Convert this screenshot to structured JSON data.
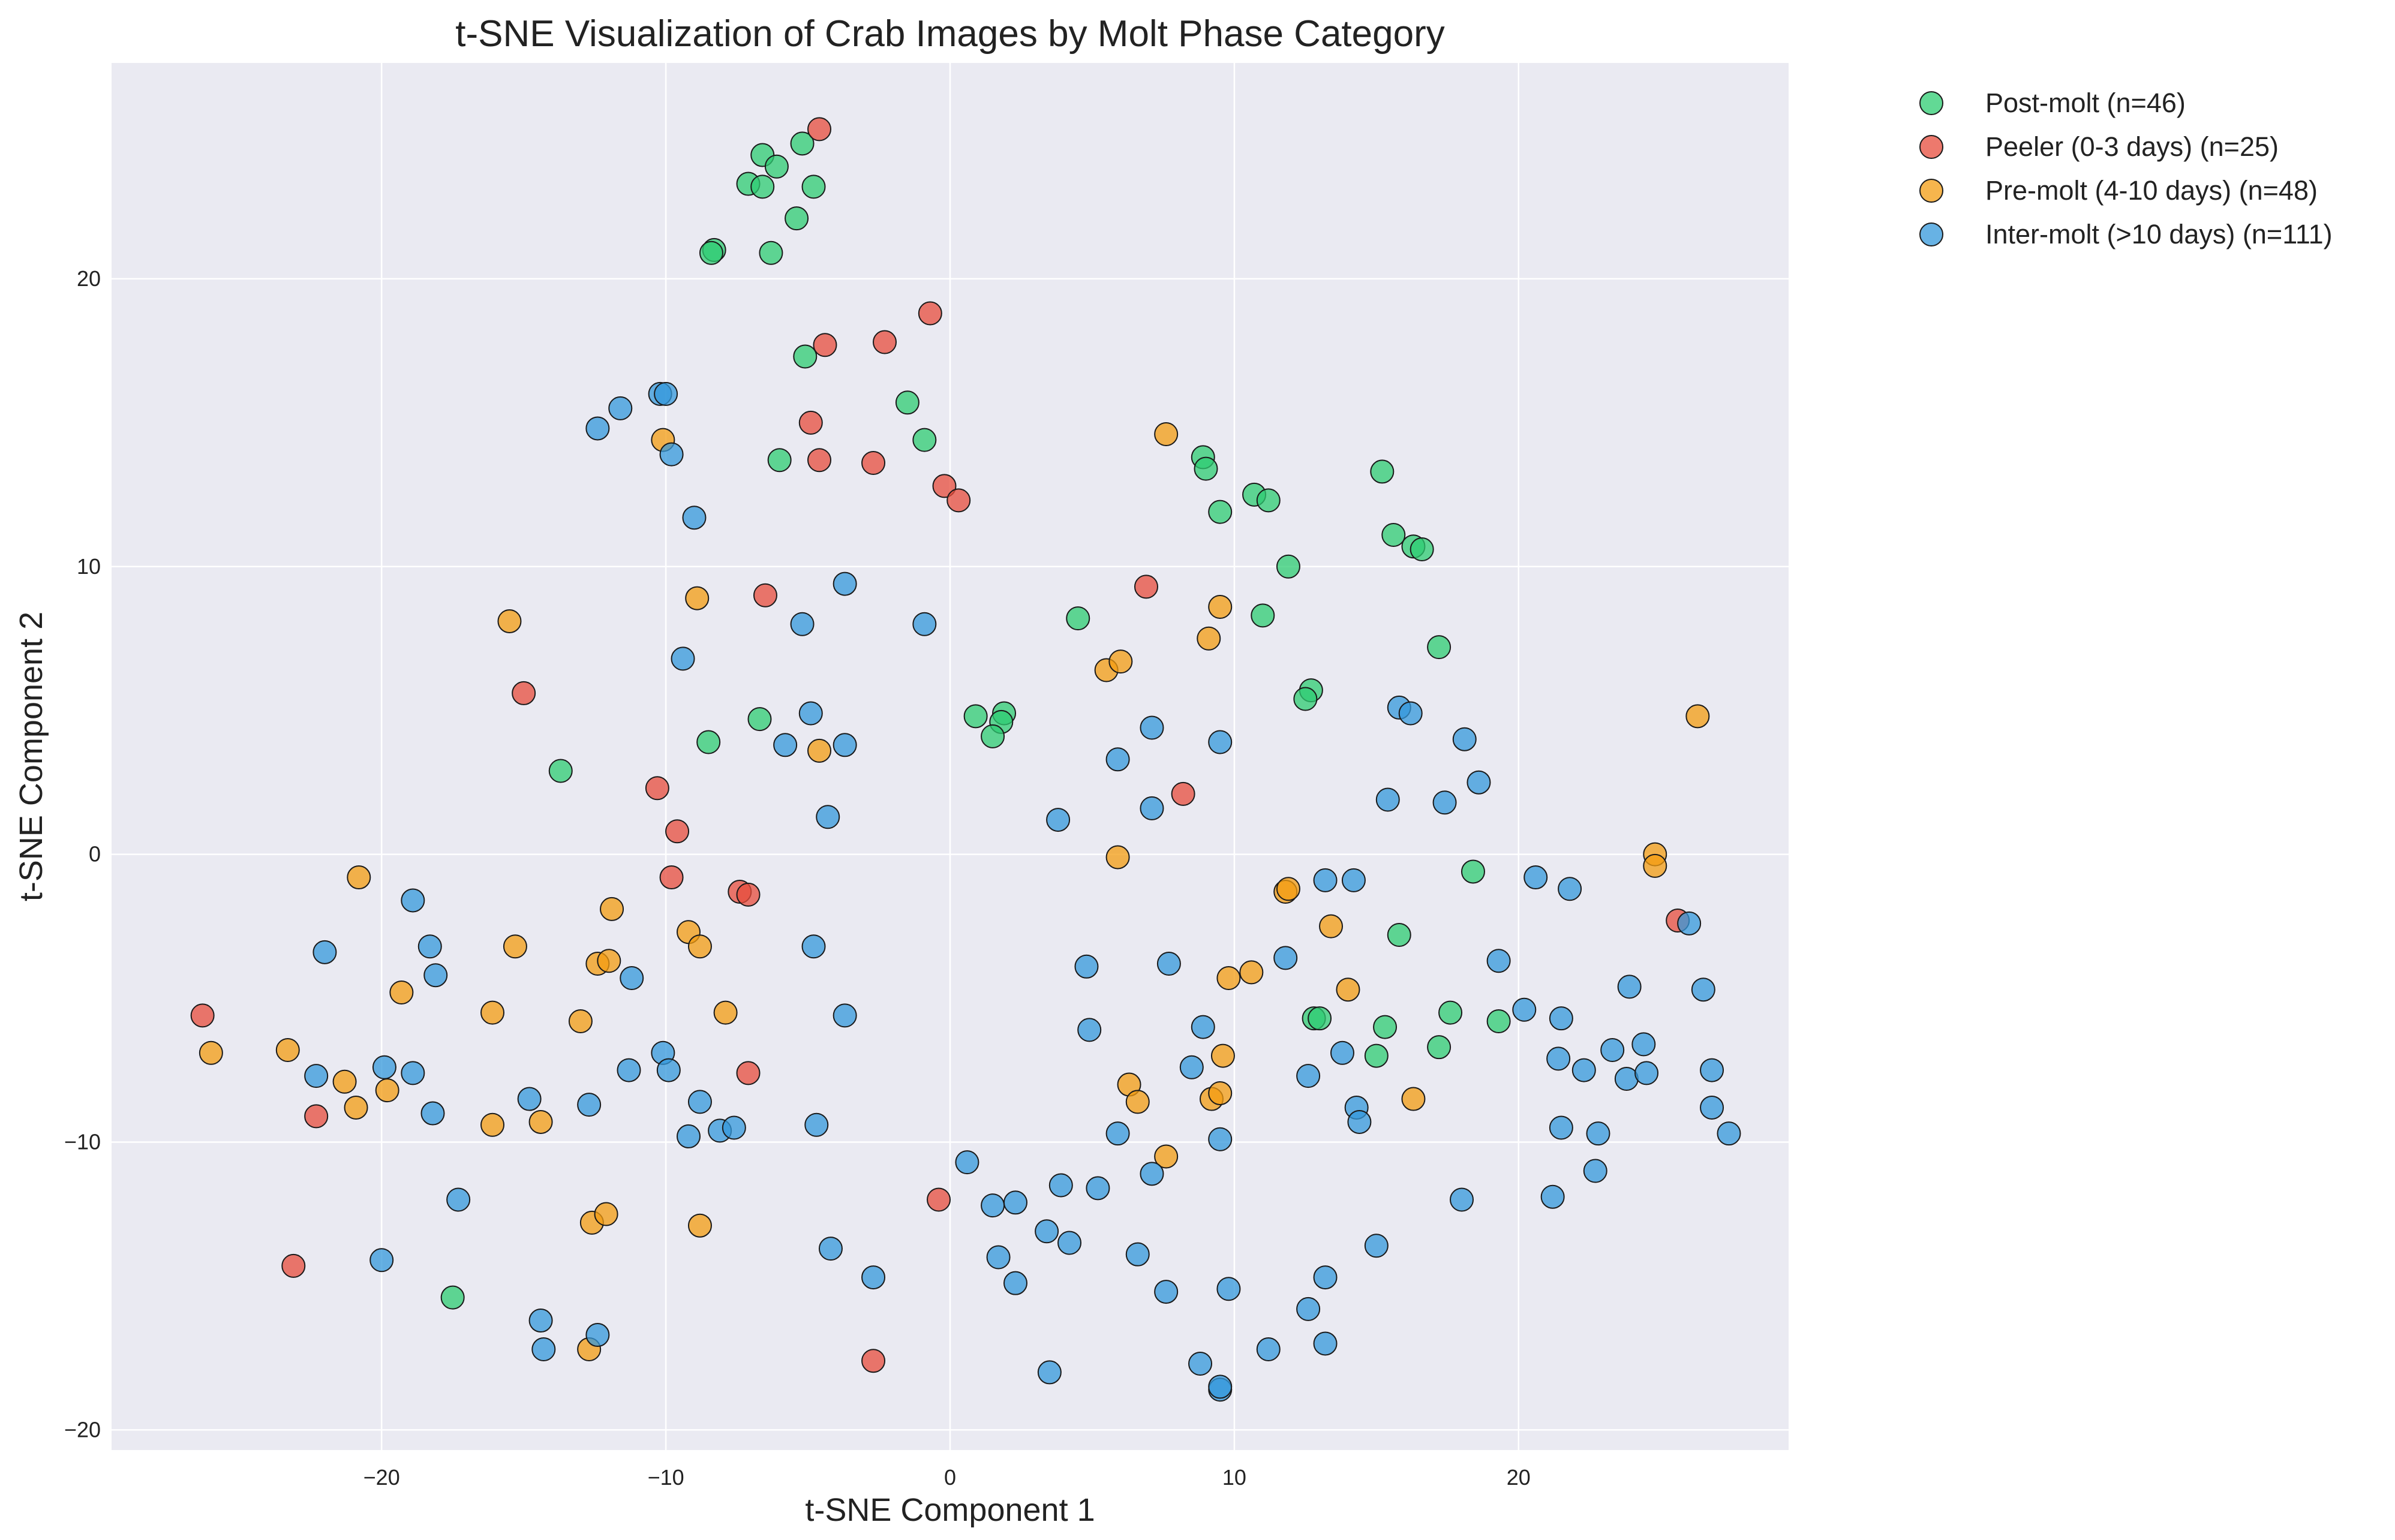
{
  "chart_data": {
    "type": "scatter",
    "title": "t-SNE Visualization of Crab Images by Molt Phase Category",
    "xlabel": "t-SNE Component 1",
    "ylabel": "t-SNE Component 2",
    "xlim": [
      -29.5,
      29.5
    ],
    "ylim": [
      -20.7,
      27.5
    ],
    "xticks": [
      -20,
      -10,
      0,
      10,
      20
    ],
    "yticks": [
      -20,
      -10,
      0,
      10,
      20
    ],
    "xtick_labels": [
      "−20",
      "−10",
      "0",
      "10",
      "20"
    ],
    "ytick_labels": [
      "−20",
      "−10",
      "0",
      "10",
      "20"
    ],
    "grid": true,
    "background": "#EAEAF2",
    "legend_position": "upper-right-outside",
    "series": [
      {
        "name": "Post-molt (n=46)",
        "color": "#2ECC71",
        "points": [
          [
            -7.1,
            23.3
          ],
          [
            -6.6,
            24.3
          ],
          [
            -6.6,
            23.2
          ],
          [
            -6.1,
            23.9
          ],
          [
            -5.2,
            24.7
          ],
          [
            -4.8,
            23.2
          ],
          [
            -5.4,
            22.1
          ],
          [
            -8.3,
            21.0
          ],
          [
            -8.4,
            20.9
          ],
          [
            -6.3,
            20.9
          ],
          [
            -5.1,
            17.3
          ],
          [
            -1.5,
            15.7
          ],
          [
            -0.9,
            14.4
          ],
          [
            -6.0,
            13.7
          ],
          [
            8.9,
            13.8
          ],
          [
            9.0,
            13.4
          ],
          [
            10.7,
            12.5
          ],
          [
            11.2,
            12.3
          ],
          [
            9.5,
            11.9
          ],
          [
            15.2,
            13.3
          ],
          [
            15.6,
            11.1
          ],
          [
            16.3,
            10.7
          ],
          [
            16.6,
            10.6
          ],
          [
            11.9,
            10.0
          ],
          [
            11.0,
            8.3
          ],
          [
            4.5,
            8.2
          ],
          [
            17.2,
            7.2
          ],
          [
            12.7,
            5.7
          ],
          [
            12.5,
            5.4
          ],
          [
            0.9,
            4.8
          ],
          [
            1.9,
            4.9
          ],
          [
            1.8,
            4.6
          ],
          [
            1.5,
            4.1
          ],
          [
            -6.7,
            4.7
          ],
          [
            -8.5,
            3.9
          ],
          [
            -13.7,
            2.9
          ],
          [
            18.4,
            -0.6
          ],
          [
            15.8,
            -2.8
          ],
          [
            12.8,
            -5.7
          ],
          [
            13.0,
            -5.7
          ],
          [
            15.3,
            -6.0
          ],
          [
            17.6,
            -5.5
          ],
          [
            19.3,
            -5.8
          ],
          [
            17.2,
            -6.7
          ],
          [
            15.0,
            -7.0
          ],
          [
            -17.5,
            -15.4
          ]
        ]
      },
      {
        "name": "Peeler (0-3 days) (n=25)",
        "color": "#E74C3C",
        "points": [
          [
            -4.6,
            25.2
          ],
          [
            -0.7,
            18.8
          ],
          [
            -2.3,
            17.8
          ],
          [
            -4.4,
            17.7
          ],
          [
            -4.9,
            15.0
          ],
          [
            -4.6,
            13.7
          ],
          [
            -2.7,
            13.6
          ],
          [
            -0.2,
            12.8
          ],
          [
            0.3,
            12.3
          ],
          [
            -6.5,
            9.0
          ],
          [
            6.9,
            9.3
          ],
          [
            -15.0,
            5.6
          ],
          [
            8.2,
            2.1
          ],
          [
            -10.3,
            2.3
          ],
          [
            -9.6,
            0.8
          ],
          [
            -9.8,
            -0.8
          ],
          [
            -7.4,
            -1.3
          ],
          [
            -7.1,
            -1.4
          ],
          [
            -26.3,
            -5.6
          ],
          [
            -7.1,
            -7.6
          ],
          [
            -22.3,
            -9.1
          ],
          [
            -23.1,
            -14.3
          ],
          [
            -0.4,
            -12.0
          ],
          [
            -2.7,
            -17.6
          ],
          [
            25.6,
            -2.3
          ]
        ]
      },
      {
        "name": "Pre-molt (4-10 days) (n=48)",
        "color": "#F39C12",
        "points": [
          [
            7.6,
            14.6
          ],
          [
            -10.1,
            14.4
          ],
          [
            -8.9,
            8.9
          ],
          [
            -15.5,
            8.1
          ],
          [
            9.5,
            8.6
          ],
          [
            9.1,
            7.5
          ],
          [
            5.5,
            6.4
          ],
          [
            6.0,
            6.7
          ],
          [
            -4.6,
            3.6
          ],
          [
            26.3,
            4.8
          ],
          [
            -20.8,
            -0.8
          ],
          [
            5.9,
            -0.1
          ],
          [
            11.8,
            -1.3
          ],
          [
            11.9,
            -1.2
          ],
          [
            13.4,
            -2.5
          ],
          [
            24.8,
            0.0
          ],
          [
            24.8,
            -0.4
          ],
          [
            -11.9,
            -1.9
          ],
          [
            -9.2,
            -2.7
          ],
          [
            -8.8,
            -3.2
          ],
          [
            -15.3,
            -3.2
          ],
          [
            -12.4,
            -3.8
          ],
          [
            -12.0,
            -3.7
          ],
          [
            9.8,
            -4.3
          ],
          [
            10.6,
            -4.1
          ],
          [
            14.0,
            -4.7
          ],
          [
            -19.3,
            -4.8
          ],
          [
            -16.1,
            -5.5
          ],
          [
            -13.0,
            -5.8
          ],
          [
            -7.9,
            -5.5
          ],
          [
            -26.0,
            -6.9
          ],
          [
            -23.3,
            -6.8
          ],
          [
            -21.3,
            -7.9
          ],
          [
            -19.8,
            -8.2
          ],
          [
            -20.9,
            -8.8
          ],
          [
            6.3,
            -8.0
          ],
          [
            6.6,
            -8.6
          ],
          [
            9.6,
            -7.0
          ],
          [
            9.2,
            -8.5
          ],
          [
            9.5,
            -8.3
          ],
          [
            16.3,
            -8.5
          ],
          [
            7.6,
            -10.5
          ],
          [
            -16.1,
            -9.4
          ],
          [
            -14.4,
            -9.3
          ],
          [
            -12.6,
            -12.8
          ],
          [
            -12.1,
            -12.5
          ],
          [
            -8.8,
            -12.9
          ],
          [
            -12.7,
            -17.2
          ]
        ]
      },
      {
        "name": "Inter-molt (>10 days) (n=111)",
        "color": "#3498DB",
        "points": [
          [
            -10.2,
            16.0
          ],
          [
            -10.0,
            16.0
          ],
          [
            -11.6,
            15.5
          ],
          [
            -12.4,
            14.8
          ],
          [
            -9.8,
            13.9
          ],
          [
            -9.0,
            11.7
          ],
          [
            -3.7,
            9.4
          ],
          [
            -5.2,
            8.0
          ],
          [
            -0.9,
            8.0
          ],
          [
            -9.4,
            6.8
          ],
          [
            -4.9,
            4.9
          ],
          [
            -5.8,
            3.8
          ],
          [
            -3.7,
            3.8
          ],
          [
            -4.3,
            1.3
          ],
          [
            3.8,
            1.2
          ],
          [
            5.9,
            3.3
          ],
          [
            7.1,
            4.4
          ],
          [
            9.5,
            3.9
          ],
          [
            7.1,
            1.6
          ],
          [
            15.8,
            5.1
          ],
          [
            16.2,
            4.9
          ],
          [
            18.1,
            4.0
          ],
          [
            15.4,
            1.9
          ],
          [
            17.4,
            1.8
          ],
          [
            18.6,
            2.5
          ],
          [
            13.2,
            -0.9
          ],
          [
            14.2,
            -0.9
          ],
          [
            20.6,
            -0.8
          ],
          [
            21.8,
            -1.2
          ],
          [
            26.0,
            -2.4
          ],
          [
            -18.9,
            -1.6
          ],
          [
            -18.3,
            -3.2
          ],
          [
            -22.0,
            -3.4
          ],
          [
            -18.1,
            -4.2
          ],
          [
            -11.2,
            -4.3
          ],
          [
            -4.8,
            -3.2
          ],
          [
            -3.7,
            -5.6
          ],
          [
            4.8,
            -3.9
          ],
          [
            7.7,
            -3.8
          ],
          [
            11.8,
            -3.6
          ],
          [
            19.3,
            -3.7
          ],
          [
            23.9,
            -4.6
          ],
          [
            26.5,
            -4.7
          ],
          [
            4.9,
            -6.1
          ],
          [
            8.9,
            -6.0
          ],
          [
            13.8,
            -6.9
          ],
          [
            20.2,
            -5.4
          ],
          [
            21.5,
            -5.7
          ],
          [
            21.4,
            -7.1
          ],
          [
            23.3,
            -6.8
          ],
          [
            24.4,
            -6.6
          ],
          [
            -22.3,
            -7.7
          ],
          [
            -19.9,
            -7.4
          ],
          [
            -18.9,
            -7.6
          ],
          [
            -11.3,
            -7.5
          ],
          [
            -10.1,
            -6.9
          ],
          [
            -9.9,
            -7.5
          ],
          [
            -14.8,
            -8.5
          ],
          [
            -12.7,
            -8.7
          ],
          [
            -8.8,
            -8.6
          ],
          [
            8.5,
            -7.4
          ],
          [
            12.6,
            -7.7
          ],
          [
            22.3,
            -7.5
          ],
          [
            23.8,
            -7.8
          ],
          [
            24.5,
            -7.6
          ],
          [
            26.8,
            -7.5
          ],
          [
            -18.2,
            -9.0
          ],
          [
            -9.2,
            -9.8
          ],
          [
            -8.1,
            -9.6
          ],
          [
            -7.6,
            -9.5
          ],
          [
            -4.7,
            -9.4
          ],
          [
            14.3,
            -8.8
          ],
          [
            14.4,
            -9.3
          ],
          [
            26.8,
            -8.8
          ],
          [
            27.4,
            -9.7
          ],
          [
            21.5,
            -9.5
          ],
          [
            22.8,
            -9.7
          ],
          [
            9.5,
            -9.9
          ],
          [
            5.9,
            -9.7
          ],
          [
            0.6,
            -10.7
          ],
          [
            3.9,
            -11.5
          ],
          [
            5.2,
            -11.6
          ],
          [
            7.1,
            -11.1
          ],
          [
            1.5,
            -12.2
          ],
          [
            2.3,
            -12.1
          ],
          [
            18.0,
            -12.0
          ],
          [
            21.2,
            -11.9
          ],
          [
            22.7,
            -11.0
          ],
          [
            -17.3,
            -12.0
          ],
          [
            3.4,
            -13.1
          ],
          [
            4.2,
            -13.5
          ],
          [
            -4.2,
            -13.7
          ],
          [
            1.7,
            -14.0
          ],
          [
            6.6,
            -13.9
          ],
          [
            15.0,
            -13.6
          ],
          [
            -20.0,
            -14.1
          ],
          [
            -2.7,
            -14.7
          ],
          [
            2.3,
            -14.9
          ],
          [
            7.6,
            -15.2
          ],
          [
            9.8,
            -15.1
          ],
          [
            13.2,
            -14.7
          ],
          [
            12.6,
            -15.8
          ],
          [
            -14.4,
            -16.2
          ],
          [
            -12.4,
            -16.7
          ],
          [
            -14.3,
            -17.2
          ],
          [
            11.2,
            -17.2
          ],
          [
            13.2,
            -17.0
          ],
          [
            8.8,
            -17.7
          ],
          [
            3.5,
            -18.0
          ],
          [
            9.5,
            -18.6
          ],
          [
            9.5,
            -18.5
          ]
        ]
      }
    ]
  }
}
